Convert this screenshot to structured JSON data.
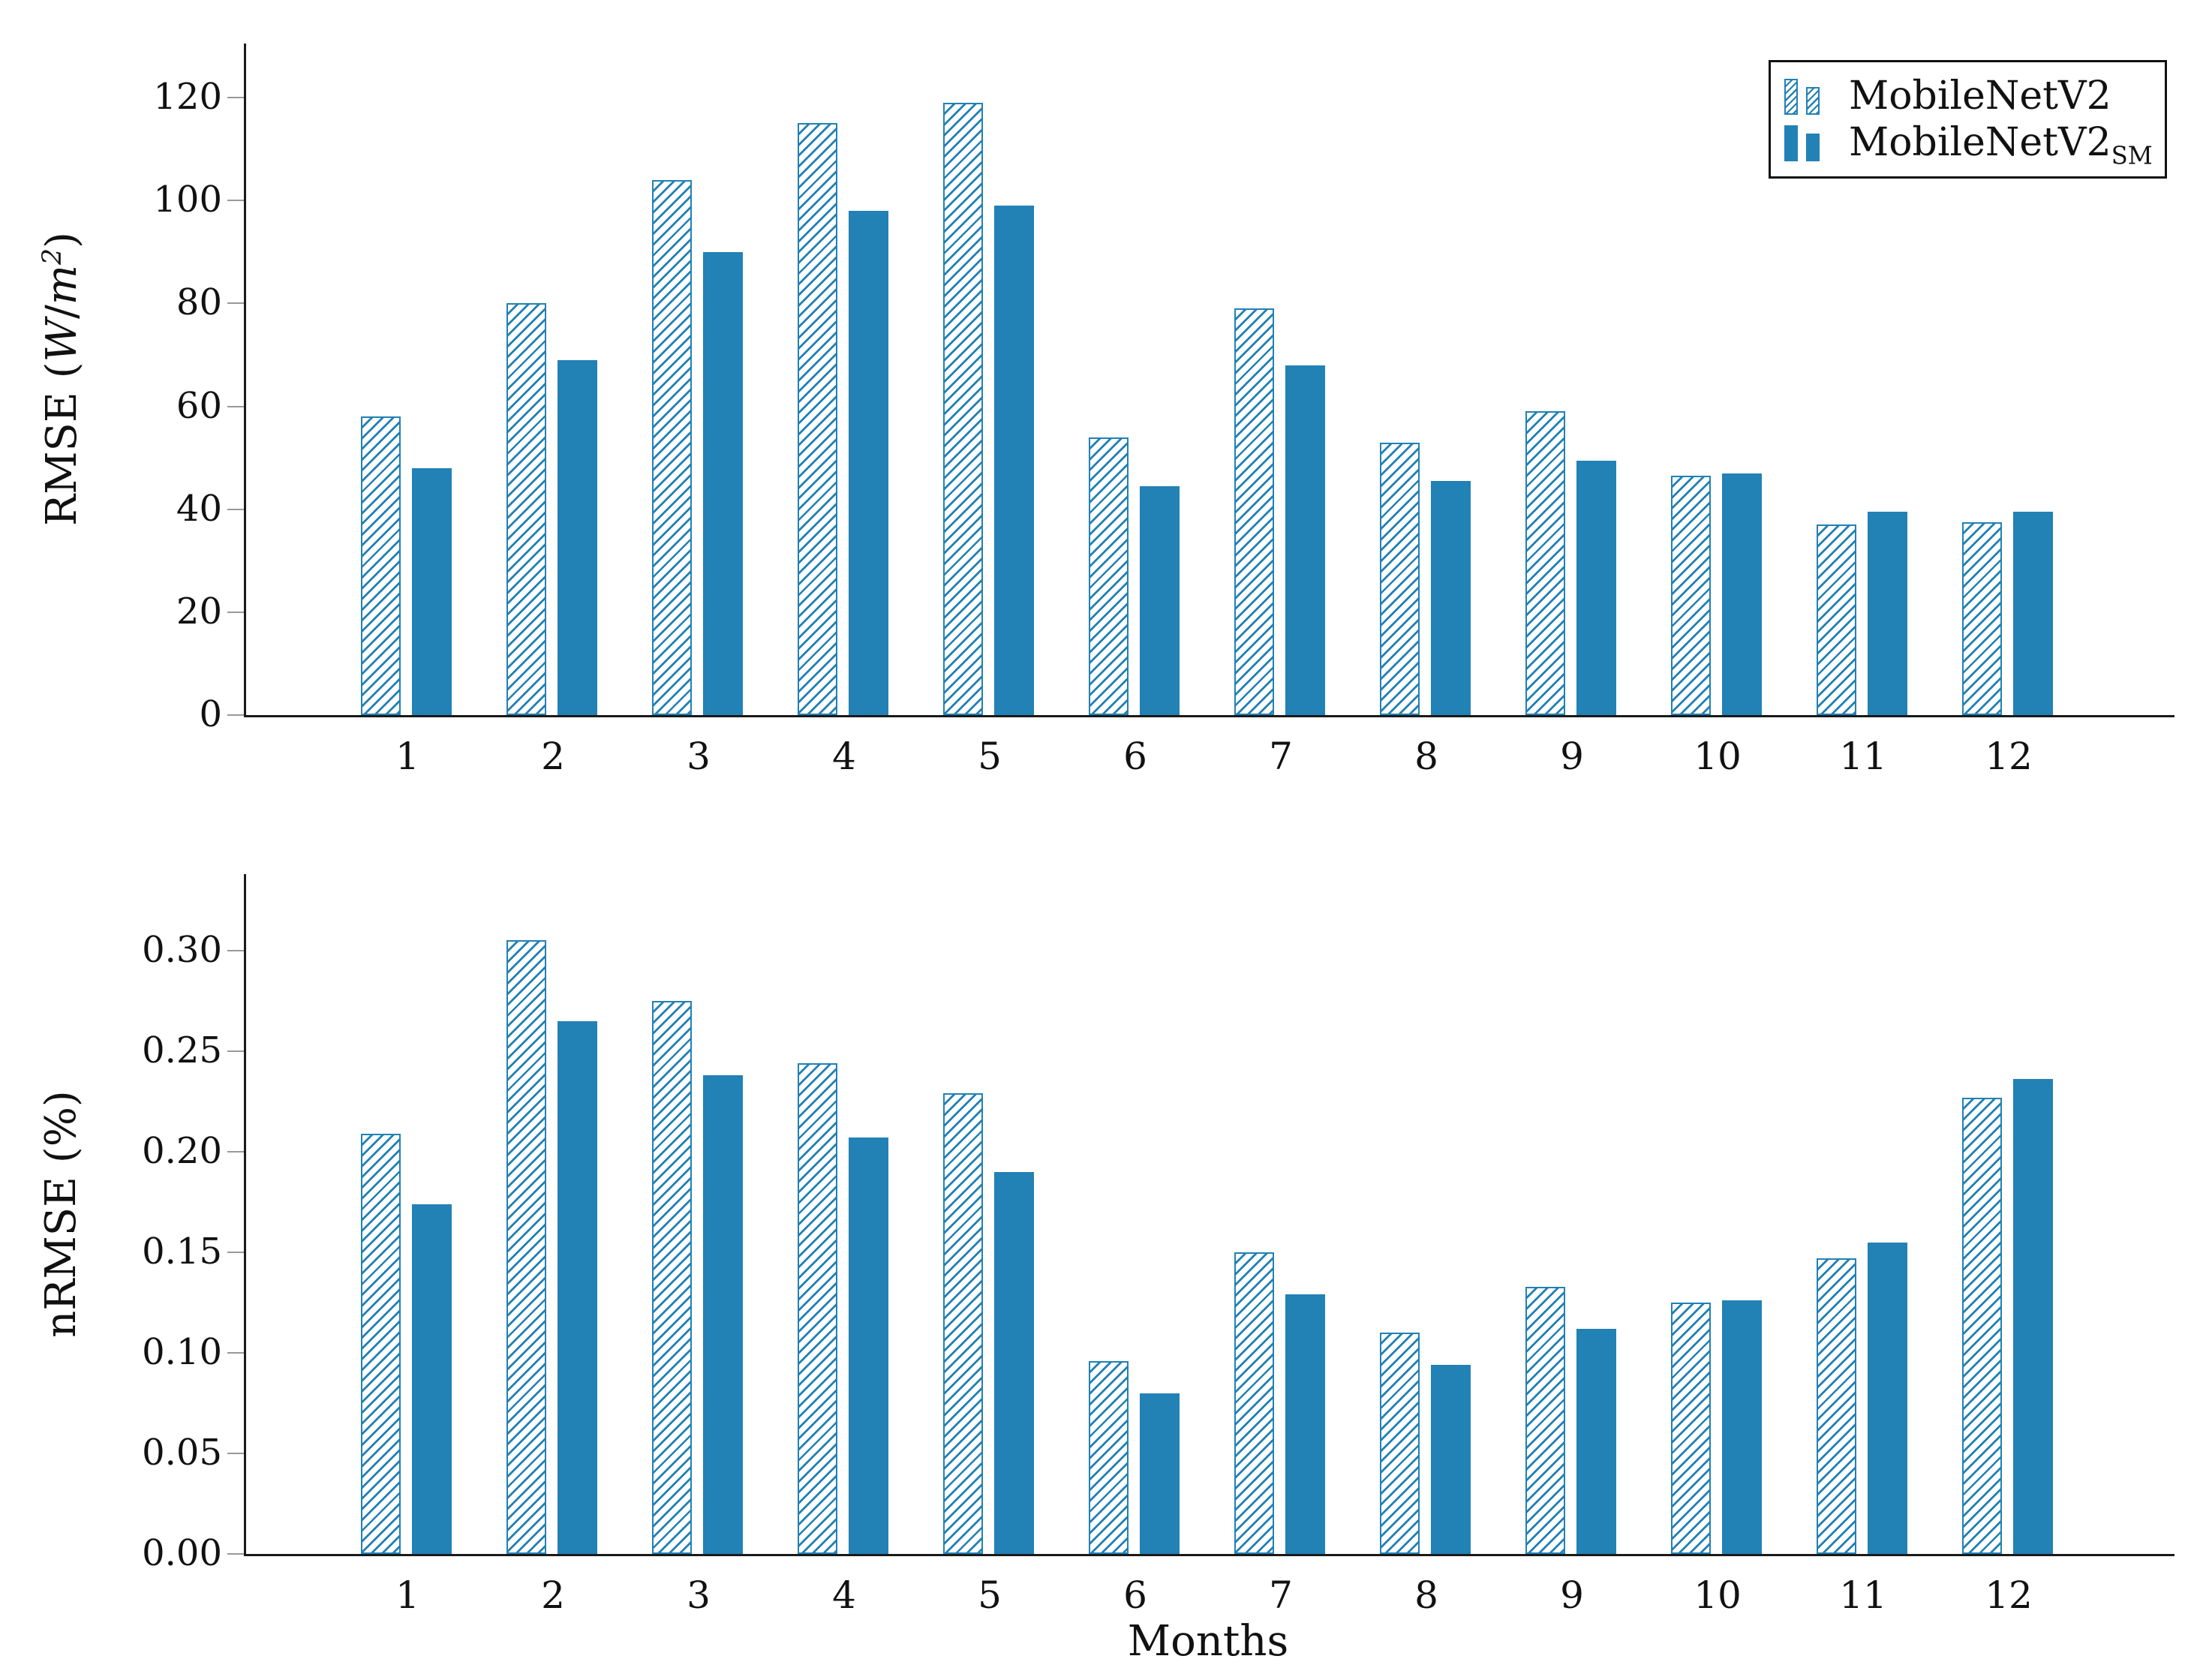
{
  "style": {
    "bar_color": "#2281b5",
    "hatch_color": "#2281b5",
    "axis_color": "#1a1a1a",
    "tick_mark_color": "#999999",
    "background": "#ffffff"
  },
  "legend": {
    "position": "upper right",
    "items": [
      {
        "label": "MobileNetV2",
        "subscript": "",
        "style": "hatched"
      },
      {
        "label": "MobileNetV2",
        "subscript": "SM",
        "style": "solid"
      }
    ]
  },
  "chart_data": [
    {
      "type": "bar",
      "title": "",
      "xlabel": "",
      "ylabel": "RMSE (W/m²)",
      "ylabel_parts": {
        "prefix": "RMSE (",
        "unit_num": "W",
        "unit_sep": "/",
        "unit_den": "m",
        "unit_exp": "2",
        "suffix": ")"
      },
      "categories": [
        "1",
        "2",
        "3",
        "4",
        "5",
        "6",
        "7",
        "8",
        "9",
        "10",
        "11",
        "12"
      ],
      "series": [
        {
          "name": "MobileNetV2",
          "style": "hatched",
          "values": [
            58,
            80,
            104,
            115,
            119,
            54,
            79,
            53,
            59,
            46.5,
            37,
            37.5
          ]
        },
        {
          "name": "MobileNetV2_SM",
          "style": "solid",
          "values": [
            48,
            69,
            90,
            98,
            99,
            44.5,
            68,
            45.5,
            49.5,
            47,
            39.5,
            39.5
          ]
        }
      ],
      "ylim": [
        0,
        130.5
      ],
      "yticks": [
        0,
        20,
        40,
        60,
        80,
        100,
        120
      ],
      "ytick_labels": [
        "0",
        "20",
        "40",
        "60",
        "80",
        "100",
        "120"
      ],
      "grid": false,
      "legend_position": "upper right"
    },
    {
      "type": "bar",
      "title": "",
      "xlabel": "Months",
      "ylabel": "nRMSE (%)",
      "categories": [
        "1",
        "2",
        "3",
        "4",
        "5",
        "6",
        "7",
        "8",
        "9",
        "10",
        "11",
        "12"
      ],
      "series": [
        {
          "name": "MobileNetV2",
          "style": "hatched",
          "values": [
            0.209,
            0.305,
            0.275,
            0.244,
            0.229,
            0.096,
            0.15,
            0.11,
            0.133,
            0.125,
            0.147,
            0.227
          ]
        },
        {
          "name": "MobileNetV2_SM",
          "style": "solid",
          "values": [
            0.174,
            0.265,
            0.238,
            0.207,
            0.19,
            0.08,
            0.129,
            0.094,
            0.112,
            0.126,
            0.155,
            0.236
          ]
        }
      ],
      "ylim": [
        0,
        0.338
      ],
      "yticks": [
        0.0,
        0.05,
        0.1,
        0.15,
        0.2,
        0.25,
        0.3
      ],
      "ytick_labels": [
        "0.00",
        "0.05",
        "0.10",
        "0.15",
        "0.20",
        "0.25",
        "0.30"
      ],
      "grid": false,
      "legend_position": "none"
    }
  ]
}
